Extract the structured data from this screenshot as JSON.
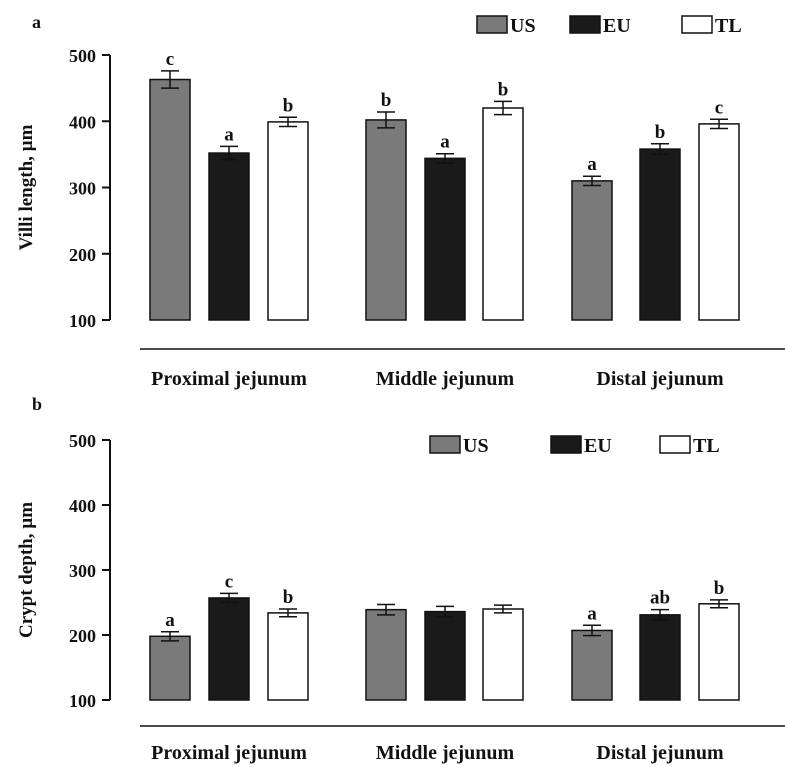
{
  "chart_data": [
    {
      "panel_label": "a",
      "type": "bar",
      "ylabel": "Villi length, µm",
      "ylim": [
        100,
        500
      ],
      "yticks": [
        100,
        200,
        300,
        400,
        500
      ],
      "categories": [
        "Proximal jejunum",
        "Middle jejunum",
        "Distal jejunum"
      ],
      "legend": [
        "US",
        "EU",
        "TL"
      ],
      "legend_position": "top-right",
      "series": [
        {
          "name": "US",
          "color": "#7a7a7a",
          "values": [
            463,
            402,
            310
          ],
          "errors": [
            13,
            12,
            7
          ],
          "letters": [
            "c",
            "b",
            "a"
          ]
        },
        {
          "name": "EU",
          "color": "#1a1a1a",
          "values": [
            352,
            344,
            358
          ],
          "errors": [
            10,
            7,
            8
          ],
          "letters": [
            "a",
            "a",
            "b"
          ]
        },
        {
          "name": "TL",
          "color": "#ffffff",
          "values": [
            399,
            420,
            396
          ],
          "errors": [
            7,
            10,
            7
          ],
          "letters": [
            "b",
            "b",
            "c"
          ]
        }
      ]
    },
    {
      "panel_label": "b",
      "type": "bar",
      "ylabel": "Crypt depth, µm",
      "ylim": [
        100,
        500
      ],
      "yticks": [
        100,
        200,
        300,
        400,
        500
      ],
      "categories": [
        "Proximal jejunum",
        "Middle jejunum",
        "Distal jejunum"
      ],
      "legend": [
        "US",
        "EU",
        "TL"
      ],
      "legend_position": "top-right",
      "series": [
        {
          "name": "US",
          "color": "#7a7a7a",
          "values": [
            198,
            239,
            207
          ],
          "errors": [
            7,
            8,
            8
          ],
          "letters": [
            "a",
            "",
            "a"
          ]
        },
        {
          "name": "EU",
          "color": "#1a1a1a",
          "values": [
            257,
            236,
            231
          ],
          "errors": [
            7,
            8,
            8
          ],
          "letters": [
            "c",
            "",
            "ab"
          ]
        },
        {
          "name": "TL",
          "color": "#ffffff",
          "values": [
            234,
            240,
            248
          ],
          "errors": [
            6,
            6,
            6
          ],
          "letters": [
            "b",
            "",
            "b"
          ]
        }
      ]
    }
  ]
}
